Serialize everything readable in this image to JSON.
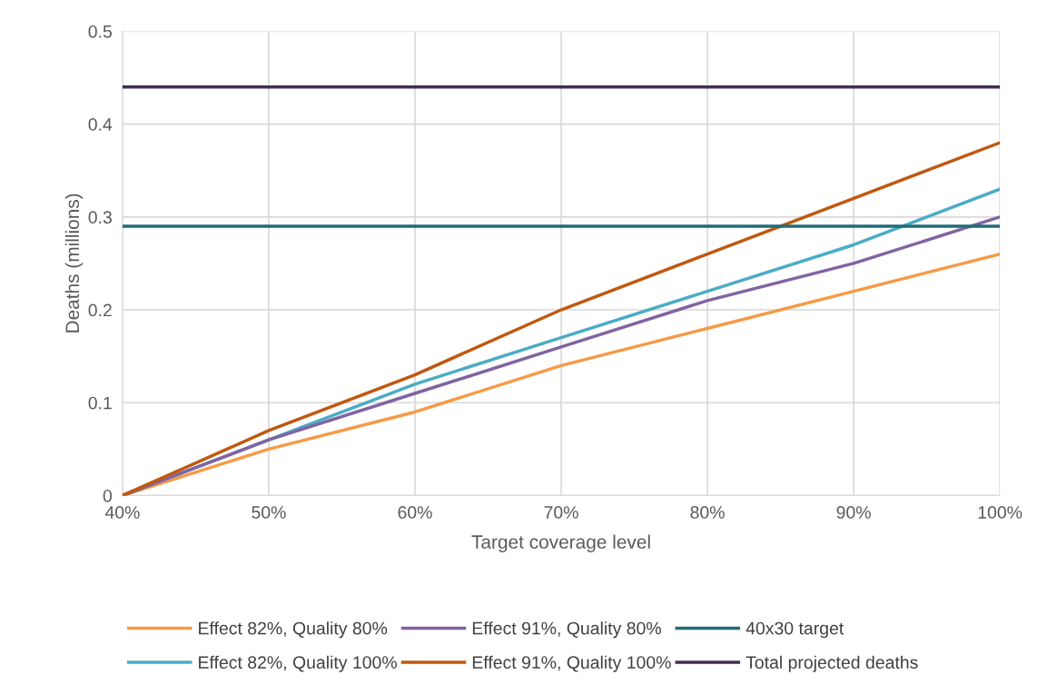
{
  "chart_data": {
    "type": "line",
    "xlabel": "Target coverage level",
    "ylabel": "Deaths (millions)",
    "x": [
      40,
      50,
      60,
      70,
      80,
      90,
      100
    ],
    "series": [
      {
        "name": "Effect 82%, Quality 80%",
        "color": "#f79a46",
        "values": [
          0,
          0.05,
          0.09,
          0.14,
          0.18,
          0.22,
          0.26
        ]
      },
      {
        "name": "Effect 82%, Quality 100%",
        "color": "#4bacc6",
        "values": [
          0,
          0.06,
          0.12,
          0.17,
          0.22,
          0.27,
          0.33
        ]
      },
      {
        "name": "Effect 91%, Quality 80%",
        "color": "#8064a2",
        "values": [
          0,
          0.06,
          0.11,
          0.16,
          0.21,
          0.25,
          0.3
        ]
      },
      {
        "name": "Effect 91%, Quality 100%",
        "color": "#c0580f",
        "values": [
          0,
          0.07,
          0.13,
          0.2,
          0.26,
          0.32,
          0.38
        ]
      },
      {
        "name": "40x30 target",
        "color": "#236b78",
        "values": [
          0.29,
          0.29,
          0.29,
          0.29,
          0.29,
          0.29,
          0.29
        ]
      },
      {
        "name": "Total projected deaths",
        "color": "#403152",
        "values": [
          0.44,
          0.44,
          0.44,
          0.44,
          0.44,
          0.44,
          0.44
        ]
      }
    ],
    "xlim": [
      40,
      100
    ],
    "xticks": [
      {
        "value": 40,
        "label": "40%"
      },
      {
        "value": 50,
        "label": "50%"
      },
      {
        "value": 60,
        "label": "60%"
      },
      {
        "value": 70,
        "label": "70%"
      },
      {
        "value": 80,
        "label": "80%"
      },
      {
        "value": 90,
        "label": "90%"
      },
      {
        "value": 100,
        "label": "100%"
      }
    ],
    "ylim": [
      0,
      0.5
    ],
    "yticks": [
      0,
      0.1,
      0.2,
      0.3,
      0.4,
      0.5
    ],
    "grid": true,
    "legend": "bottom",
    "marker": "none",
    "line_style": "solid"
  }
}
